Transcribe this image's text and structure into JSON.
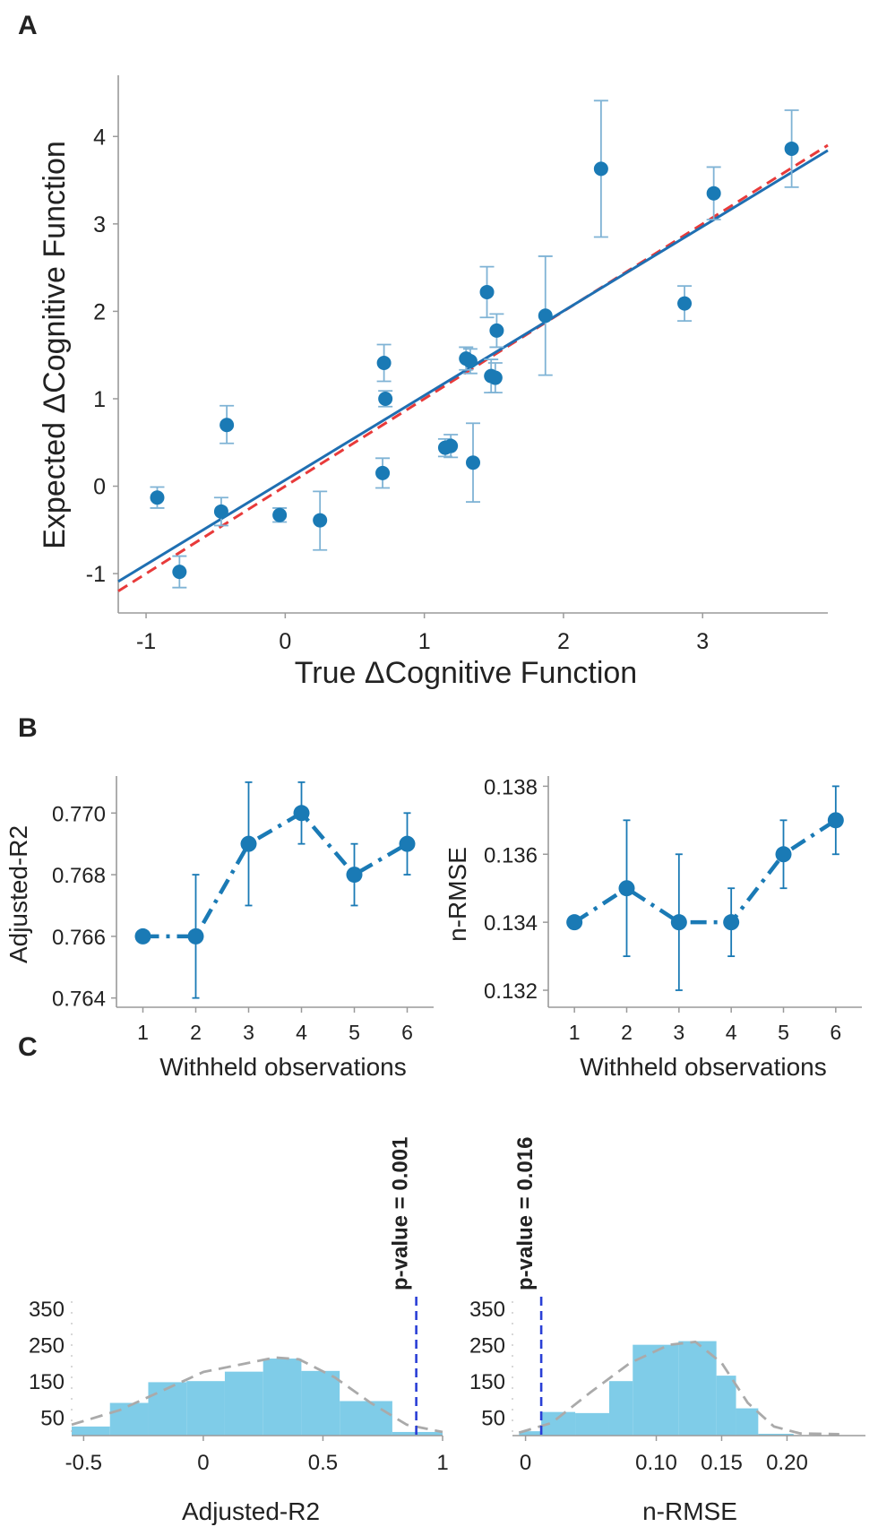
{
  "panels": {
    "a": "A",
    "b": "B",
    "c": "C"
  },
  "chart_data": [
    {
      "panel": "A",
      "type": "scatter",
      "xlabel": "True ΔCognitive Function",
      "ylabel": "Expected ΔCognitive Function",
      "xlim": [
        -1.2,
        3.9
      ],
      "ylim": [
        -1.45,
        4.7
      ],
      "xticks": [
        "-1",
        "0",
        "1",
        "2",
        "3"
      ],
      "yticks": [
        "-1",
        "0",
        "1",
        "2",
        "3",
        "4"
      ],
      "points": [
        {
          "x": -0.92,
          "y": -0.13,
          "lo": -0.25,
          "hi": -0.01
        },
        {
          "x": -0.76,
          "y": -0.98,
          "lo": -1.16,
          "hi": -0.8
        },
        {
          "x": -0.46,
          "y": -0.29,
          "lo": -0.45,
          "hi": -0.13
        },
        {
          "x": -0.42,
          "y": 0.7,
          "lo": 0.49,
          "hi": 0.92
        },
        {
          "x": -0.04,
          "y": -0.33,
          "lo": -0.41,
          "hi": -0.25
        },
        {
          "x": 0.25,
          "y": -0.39,
          "lo": -0.73,
          "hi": -0.06
        },
        {
          "x": 0.7,
          "y": 0.15,
          "lo": -0.02,
          "hi": 0.32
        },
        {
          "x": 0.71,
          "y": 1.41,
          "lo": 1.2,
          "hi": 1.62
        },
        {
          "x": 0.72,
          "y": 1.0,
          "lo": 0.91,
          "hi": 1.09
        },
        {
          "x": 1.15,
          "y": 0.44,
          "lo": 0.34,
          "hi": 0.54
        },
        {
          "x": 1.19,
          "y": 0.46,
          "lo": 0.33,
          "hi": 0.59
        },
        {
          "x": 1.3,
          "y": 1.46,
          "lo": 1.33,
          "hi": 1.59
        },
        {
          "x": 1.33,
          "y": 1.43,
          "lo": 1.29,
          "hi": 1.57
        },
        {
          "x": 1.35,
          "y": 0.27,
          "lo": -0.18,
          "hi": 0.72
        },
        {
          "x": 1.45,
          "y": 2.22,
          "lo": 1.93,
          "hi": 2.51
        },
        {
          "x": 1.48,
          "y": 1.26,
          "lo": 1.07,
          "hi": 1.45
        },
        {
          "x": 1.51,
          "y": 1.24,
          "lo": 1.07,
          "hi": 1.41
        },
        {
          "x": 1.52,
          "y": 1.78,
          "lo": 1.59,
          "hi": 1.97
        },
        {
          "x": 1.87,
          "y": 1.95,
          "lo": 1.27,
          "hi": 2.63
        },
        {
          "x": 2.27,
          "y": 3.63,
          "lo": 2.85,
          "hi": 4.41
        },
        {
          "x": 2.87,
          "y": 2.09,
          "lo": 1.89,
          "hi": 2.29
        },
        {
          "x": 3.08,
          "y": 3.35,
          "lo": 3.05,
          "hi": 3.65
        },
        {
          "x": 3.64,
          "y": 3.86,
          "lo": 3.42,
          "hi": 4.3
        }
      ],
      "fit_line": {
        "color": "#1f6fb2",
        "y_at_xmin": -1.09,
        "y_at_xmax": 3.84
      },
      "identity_line": {
        "color": "#e83a3a",
        "style": "dashed"
      },
      "point_color": "#1a7ab5",
      "errorbar_color": "#7fb3d5"
    },
    {
      "panel": "B-left",
      "type": "line",
      "xlabel": "Withheld observations",
      "ylabel": "Adjusted-R2",
      "x": [
        1,
        2,
        3,
        4,
        5,
        6
      ],
      "values": [
        0.766,
        0.766,
        0.769,
        0.77,
        0.768,
        0.769
      ],
      "lo": [
        0.766,
        0.764,
        0.767,
        0.769,
        0.767,
        0.768
      ],
      "hi": [
        0.766,
        0.768,
        0.771,
        0.771,
        0.769,
        0.77
      ],
      "ylim": [
        0.7637,
        0.7712
      ],
      "yticks": [
        "0.764",
        "0.766",
        "0.768",
        "0.770"
      ],
      "xticks": [
        "1",
        "2",
        "3",
        "4",
        "5",
        "6"
      ],
      "color": "#1a7ab5"
    },
    {
      "panel": "B-right",
      "type": "line",
      "xlabel": "Withheld observations",
      "ylabel": "n-RMSE",
      "x": [
        1,
        2,
        3,
        4,
        5,
        6
      ],
      "values": [
        0.134,
        0.135,
        0.134,
        0.134,
        0.136,
        0.137
      ],
      "lo": [
        0.134,
        0.133,
        0.132,
        0.133,
        0.135,
        0.136
      ],
      "hi": [
        0.134,
        0.137,
        0.136,
        0.135,
        0.137,
        0.138
      ],
      "ylim": [
        0.1315,
        0.1383
      ],
      "yticks": [
        "0.132",
        "0.134",
        "0.136",
        "0.138"
      ],
      "xticks": [
        "1",
        "2",
        "3",
        "4",
        "5",
        "6"
      ],
      "color": "#1a7ab5"
    },
    {
      "panel": "C-left",
      "type": "bar",
      "xlabel": "Adjusted-R2",
      "bins": [
        {
          "x0": -0.55,
          "x1": -0.39,
          "count": 25
        },
        {
          "x0": -0.39,
          "x1": -0.23,
          "count": 90
        },
        {
          "x0": -0.23,
          "x1": -0.07,
          "count": 147
        },
        {
          "x0": -0.07,
          "x1": 0.09,
          "count": 150
        },
        {
          "x0": 0.09,
          "x1": 0.25,
          "count": 176
        },
        {
          "x0": 0.25,
          "x1": 0.41,
          "count": 212
        },
        {
          "x0": 0.41,
          "x1": 0.57,
          "count": 178
        },
        {
          "x0": 0.57,
          "x1": 0.79,
          "count": 95
        },
        {
          "x0": 0.79,
          "x1": 1.0,
          "count": 10
        }
      ],
      "density": [
        [
          -0.55,
          30
        ],
        [
          -0.35,
          70
        ],
        [
          -0.15,
          130
        ],
        [
          0.0,
          175
        ],
        [
          0.15,
          195
        ],
        [
          0.3,
          215
        ],
        [
          0.4,
          210
        ],
        [
          0.55,
          160
        ],
        [
          0.7,
          90
        ],
        [
          0.85,
          30
        ],
        [
          1.0,
          10
        ]
      ],
      "xlim": [
        -0.55,
        1.0
      ],
      "ylim": [
        0,
        370
      ],
      "xticks": [
        {
          "v": -0.5,
          "label": "-0.5"
        },
        {
          "v": 0,
          "label": "0"
        },
        {
          "v": 0.5,
          "label": "0.5"
        },
        {
          "v": 1,
          "label": "1"
        }
      ],
      "yticks": [
        {
          "v": 50,
          "label": "50"
        },
        {
          "v": 150,
          "label": "150"
        },
        {
          "v": 250,
          "label": "250"
        },
        {
          "v": 350,
          "label": "350"
        }
      ],
      "threshold": 0.89,
      "annotation": "p-value = 0.001",
      "bar_color": "#7fcce8"
    },
    {
      "panel": "C-right",
      "type": "bar",
      "xlabel": "n-RMSE",
      "bins": [
        {
          "x0": -0.005,
          "x1": 0.012,
          "count": 12
        },
        {
          "x0": 0.012,
          "x1": 0.038,
          "count": 65
        },
        {
          "x0": 0.038,
          "x1": 0.064,
          "count": 62
        },
        {
          "x0": 0.064,
          "x1": 0.082,
          "count": 150
        },
        {
          "x0": 0.082,
          "x1": 0.117,
          "count": 250
        },
        {
          "x0": 0.117,
          "x1": 0.146,
          "count": 260
        },
        {
          "x0": 0.146,
          "x1": 0.161,
          "count": 165
        },
        {
          "x0": 0.161,
          "x1": 0.178,
          "count": 75
        },
        {
          "x0": 0.178,
          "x1": 0.205,
          "count": 5
        }
      ],
      "density": [
        [
          -0.005,
          8
        ],
        [
          0.02,
          35
        ],
        [
          0.05,
          120
        ],
        [
          0.08,
          200
        ],
        [
          0.11,
          250
        ],
        [
          0.13,
          258
        ],
        [
          0.15,
          200
        ],
        [
          0.17,
          90
        ],
        [
          0.19,
          25
        ],
        [
          0.21,
          6
        ],
        [
          0.24,
          4
        ]
      ],
      "xlim": [
        -0.01,
        0.26
      ],
      "ylim": [
        0,
        370
      ],
      "xticks": [
        {
          "v": 0,
          "label": "0"
        },
        {
          "v": 0.1,
          "label": "0.10"
        },
        {
          "v": 0.15,
          "label": "0.15"
        },
        {
          "v": 0.2,
          "label": "0.20"
        }
      ],
      "yticks": [
        {
          "v": 50,
          "label": "50"
        },
        {
          "v": 150,
          "label": "150"
        },
        {
          "v": 250,
          "label": "250"
        },
        {
          "v": 350,
          "label": "350"
        }
      ],
      "threshold": 0.012,
      "annotation": "p-value = 0.016",
      "bar_color": "#7fcce8"
    }
  ]
}
